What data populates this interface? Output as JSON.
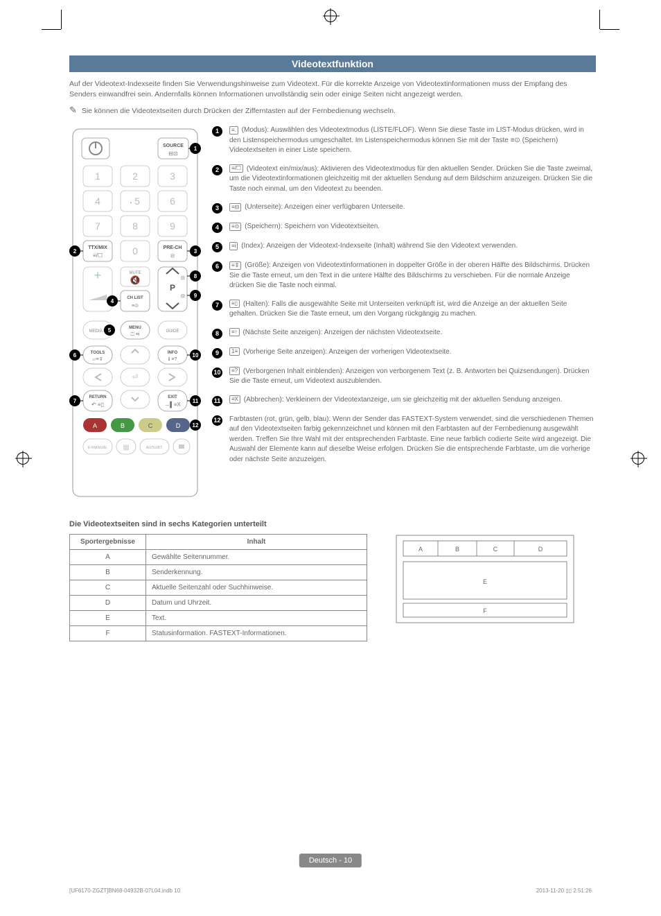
{
  "title": "Videotextfunktion",
  "intro": "Auf der Videotext-Indexseite finden Sie Verwendungshinweise zum Videotext. Für die korrekte Anzeige von Videotextinformationen muss der Empfang des Senders einwandfrei sein. Andernfalls können Informationen unvollständig sein oder einige Seiten nicht angezeigt werden.",
  "note": "Sie können die Videotextseiten durch Drücken der Zifferntasten auf der Fernbedienung wechseln.",
  "descriptions": [
    {
      "n": "1",
      "glyph": "≡.",
      "text": "(Modus): Auswählen des Videotextmodus (LISTE/FLOF). Wenn Sie diese Taste im LIST-Modus drücken, wird in den Listenspeichermodus umgeschaltet. Im Listenspeichermodus können Sie mit der Taste ≡⊙ (Speichern) Videotextseiten in einer Liste speichern."
    },
    {
      "n": "2",
      "glyph": "≡/☐",
      "text": "(Videotext ein/mix/aus): Aktivieren des Videotextmodus für den aktuellen Sender. Drücken Sie die Taste zweimal, um die Videotextinformationen gleichzeitig mit der aktuellen Sendung auf dem Bildschirm anzuzeigen. Drücken Sie die Taste noch einmal, um den Videotext zu beenden."
    },
    {
      "n": "3",
      "glyph": "≡⊟",
      "text": "(Unterseite): Anzeigen einer verfügbaren Unterseite."
    },
    {
      "n": "4",
      "glyph": "≡⊙",
      "text": "(Speichern): Speichern von Videotextseiten."
    },
    {
      "n": "5",
      "glyph": "≡i",
      "text": "(Index): Anzeigen der Videotext-Indexseite (Inhalt) während Sie den Videotext verwenden."
    },
    {
      "n": "6",
      "glyph": "≡⇕",
      "text": "(Größe): Anzeigen von Videotextinformationen in doppelter Größe in der oberen Hälfte des Bildschirms. Drücken Sie die Taste erneut, um den Text in die untere Hälfte des Bildschirms zu verschieben. Für die normale Anzeige drücken Sie die Taste noch einmal."
    },
    {
      "n": "7",
      "glyph": "≡▯",
      "text": "(Halten): Falls die ausgewählte Seite mit Unterseiten verknüpft ist, wird die Anzeige an der aktuellen Seite gehalten. Drücken Sie die Taste erneut, um den Vorgang rückgängig zu machen."
    },
    {
      "n": "8",
      "glyph": "≡↑",
      "text": "(Nächste Seite anzeigen): Anzeigen der nächsten Videotextseite."
    },
    {
      "n": "9",
      "glyph": "1≡",
      "text": "(Vorherige Seite anzeigen): Anzeigen der vorherigen Videotextseite."
    },
    {
      "n": "10",
      "glyph": "≡?",
      "text": "(Verborgenen Inhalt einblenden): Anzeigen von verborgenem Text (z. B. Antworten bei Quizsendungen). Drücken Sie die Taste erneut, um Videotext auszublenden."
    },
    {
      "n": "11",
      "glyph": "≡X",
      "text": "(Abbrechen): Verkleinern der Videotextanzeige, um sie gleichzeitig mit der aktuellen Sendung anzeigen."
    },
    {
      "n": "12",
      "glyph": "",
      "text": "Farbtasten (rot, grün, gelb, blau): Wenn der Sender das FASTEXT-System verwendet, sind die verschiedenen Themen auf den Videotextseiten farbig gekennzeichnet und können mit den Farbtasten auf der Fernbedienung ausgewählt werden. Treffen Sie Ihre Wahl mit der entsprechenden Farbtaste. Eine neue farblich codierte Seite wird angezeigt. Die Auswahl der Elemente kann auf dieselbe Weise erfolgen. Drücken Sie die entsprechende Farbtaste, um die vorherige oder nächste Seite anzuzeigen."
    }
  ],
  "subheading": "Die Videotextseiten sind in sechs Kategorien unterteilt",
  "table": {
    "headers": [
      "Sportergebnisse",
      "Inhalt"
    ],
    "rows": [
      [
        "A",
        "Gewählte Seitennummer."
      ],
      [
        "B",
        "Senderkennung."
      ],
      [
        "C",
        "Aktuelle Seitenzahl oder Suchhinweise."
      ],
      [
        "D",
        "Datum und Uhrzeit."
      ],
      [
        "E",
        "Text."
      ],
      [
        "F",
        "Statusinformation. FASTEXT-Informationen."
      ]
    ]
  },
  "layout_labels": {
    "a": "A",
    "b": "B",
    "c": "C",
    "d": "D",
    "e": "E",
    "f": "F"
  },
  "remote": {
    "source": "SOURCE",
    "ttx": "TTX/MIX",
    "prech": "PRE-CH",
    "mute": "MUTE",
    "chlist": "CH LIST",
    "mediap": "MEDIA.P",
    "menu": "MENU",
    "guide": "GUIDE",
    "tools": "TOOLS",
    "info": "INFO",
    "return": "RETURN",
    "exit": "EXIT",
    "emanual": "E-MANUAL",
    "adsubt": "AD/SUBT.",
    "a": "A",
    "b": "B",
    "c": "C",
    "d": "D"
  },
  "footer_badge": "Deutsch - 10",
  "footer_left": "[UF6170-ZGZT]BN68-04932B-07L04.indb   10",
  "footer_right": "2013-11-20   ▯▯ 2:51:26"
}
